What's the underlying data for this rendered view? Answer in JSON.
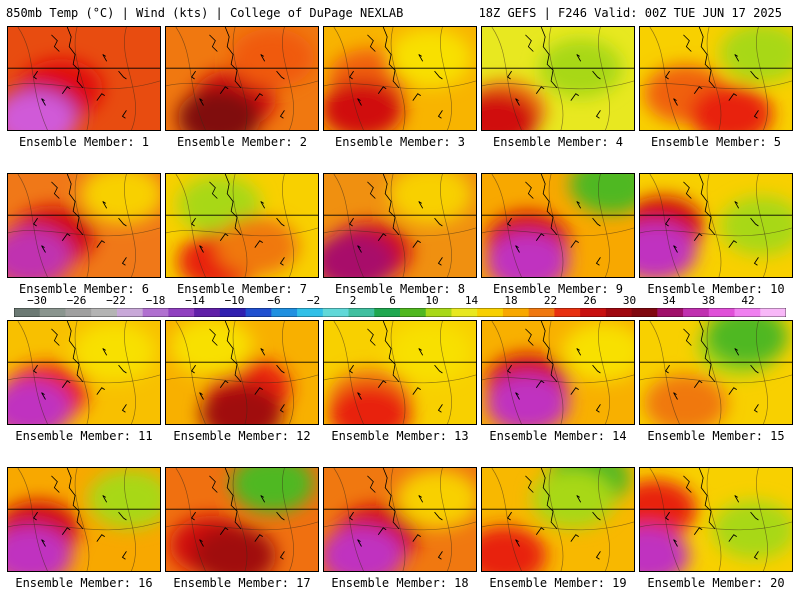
{
  "header": {
    "left": "850mb Temp (°C) | Wind (kts) | College of DuPage NEXLAB",
    "right": "18Z GEFS | F246 Valid: 00Z TUE JUN 17 2025"
  },
  "panels": [
    {
      "label": "Ensemble Member: 1",
      "base": "#e84c10",
      "blobs": [
        [
          "#e01010",
          0.35,
          0.6
        ],
        [
          "#a0106a",
          0.2,
          0.85
        ],
        [
          "#d05ad8",
          0.18,
          0.9
        ]
      ]
    },
    {
      "label": "Ensemble Member: 2",
      "base": "#f07810",
      "blobs": [
        [
          "#d01010",
          0.45,
          0.7
        ],
        [
          "#800810",
          0.35,
          0.88
        ],
        [
          "#f05a10",
          0.7,
          0.3
        ]
      ]
    },
    {
      "label": "Ensemble Member: 3",
      "base": "#f8b400",
      "blobs": [
        [
          "#f06010",
          0.3,
          0.5
        ],
        [
          "#d01010",
          0.25,
          0.8
        ],
        [
          "#f8e000",
          0.7,
          0.3
        ]
      ]
    },
    {
      "label": "Ensemble Member: 4",
      "base": "#e8e820",
      "blobs": [
        [
          "#f07810",
          0.15,
          0.8
        ],
        [
          "#d01010",
          0.1,
          0.9
        ],
        [
          "#a8d818",
          0.65,
          0.4
        ]
      ]
    },
    {
      "label": "Ensemble Member: 5",
      "base": "#f8d000",
      "blobs": [
        [
          "#f06010",
          0.3,
          0.65
        ],
        [
          "#a8d818",
          0.8,
          0.25
        ],
        [
          "#e82010",
          0.6,
          0.85
        ]
      ]
    },
    {
      "label": "Ensemble Member: 6",
      "base": "#f07818",
      "blobs": [
        [
          "#d01010",
          0.3,
          0.6
        ],
        [
          "#c030b0",
          0.15,
          0.8
        ],
        [
          "#f8d000",
          0.75,
          0.2
        ]
      ]
    },
    {
      "label": "Ensemble Member: 7",
      "base": "#f8d000",
      "blobs": [
        [
          "#a8d818",
          0.35,
          0.3
        ],
        [
          "#e82010",
          0.35,
          0.85
        ],
        [
          "#f07810",
          0.6,
          0.7
        ]
      ]
    },
    {
      "label": "Ensemble Member: 8",
      "base": "#f09010",
      "blobs": [
        [
          "#d01010",
          0.3,
          0.75
        ],
        [
          "#a8106a",
          0.2,
          0.85
        ],
        [
          "#f8d000",
          0.7,
          0.2
        ]
      ]
    },
    {
      "label": "Ensemble Member: 9",
      "base": "#f8a800",
      "blobs": [
        [
          "#d01010",
          0.3,
          0.65
        ],
        [
          "#c030c0",
          0.3,
          0.85
        ],
        [
          "#50b820",
          0.85,
          0.1
        ]
      ]
    },
    {
      "label": "Ensemble Member: 10",
      "base": "#f8d000",
      "blobs": [
        [
          "#d01010",
          0.15,
          0.5
        ],
        [
          "#c030c0",
          0.1,
          0.75
        ],
        [
          "#a8d818",
          0.8,
          0.5
        ]
      ]
    },
    {
      "label": "Ensemble Member: 11",
      "base": "#f8c000",
      "blobs": [
        [
          "#e82010",
          0.25,
          0.7
        ],
        [
          "#c030c0",
          0.15,
          0.85
        ],
        [
          "#f8e000",
          0.7,
          0.3
        ]
      ]
    },
    {
      "label": "Ensemble Member: 12",
      "base": "#f8b000",
      "blobs": [
        [
          "#e82010",
          0.55,
          0.65
        ],
        [
          "#f8e000",
          0.3,
          0.25
        ],
        [
          "#a01010",
          0.5,
          0.9
        ]
      ]
    },
    {
      "label": "Ensemble Member: 13",
      "base": "#f8d000",
      "blobs": [
        [
          "#f07810",
          0.3,
          0.75
        ],
        [
          "#e82010",
          0.3,
          0.9
        ],
        [
          "#f8e000",
          0.7,
          0.3
        ]
      ]
    },
    {
      "label": "Ensemble Member: 14",
      "base": "#f8b000",
      "blobs": [
        [
          "#d01010",
          0.3,
          0.6
        ],
        [
          "#c030c0",
          0.3,
          0.8
        ],
        [
          "#f8e000",
          0.8,
          0.3
        ]
      ]
    },
    {
      "label": "Ensemble Member: 15",
      "base": "#f8d000",
      "blobs": [
        [
          "#a8d818",
          0.65,
          0.25
        ],
        [
          "#50b820",
          0.7,
          0.15
        ],
        [
          "#f07810",
          0.3,
          0.8
        ]
      ]
    },
    {
      "label": "Ensemble Member: 16",
      "base": "#f8a800",
      "blobs": [
        [
          "#d01010",
          0.2,
          0.6
        ],
        [
          "#c030c0",
          0.15,
          0.85
        ],
        [
          "#a8d818",
          0.8,
          0.3
        ]
      ]
    },
    {
      "label": "Ensemble Member: 17",
      "base": "#f07010",
      "blobs": [
        [
          "#50b820",
          0.7,
          0.15
        ],
        [
          "#d01010",
          0.3,
          0.75
        ],
        [
          "#a01010",
          0.45,
          0.85
        ]
      ]
    },
    {
      "label": "Ensemble Member: 18",
      "base": "#f07810",
      "blobs": [
        [
          "#d01010",
          0.35,
          0.65
        ],
        [
          "#c030c0",
          0.25,
          0.85
        ],
        [
          "#f8d000",
          0.75,
          0.3
        ]
      ]
    },
    {
      "label": "Ensemble Member: 19",
      "base": "#f8b800",
      "blobs": [
        [
          "#50b820",
          0.7,
          0.1
        ],
        [
          "#a8d818",
          0.6,
          0.3
        ],
        [
          "#e82010",
          0.15,
          0.85
        ]
      ]
    },
    {
      "label": "Ensemble Member: 20",
      "base": "#f8d000",
      "blobs": [
        [
          "#e82010",
          0.1,
          0.4
        ],
        [
          "#c030c0",
          0.05,
          0.85
        ],
        [
          "#a8d818",
          0.75,
          0.6
        ]
      ]
    }
  ],
  "colorbar": {
    "ticks": [
      "−30",
      "−26",
      "−22",
      "−18",
      "−14",
      "−10",
      "−6",
      "−2",
      "2",
      "6",
      "10",
      "14",
      "18",
      "22",
      "26",
      "30",
      "34",
      "38",
      "42"
    ],
    "colors": [
      "#6c7a74",
      "#8a958f",
      "#a0a0a0",
      "#b4b4b4",
      "#c8a8d8",
      "#b070d0",
      "#9040c0",
      "#6020a8",
      "#3020b0",
      "#2050d0",
      "#2090e0",
      "#30c0e8",
      "#60d8d8",
      "#40c0a0",
      "#20a850",
      "#50b820",
      "#a8d818",
      "#e8e820",
      "#f8d000",
      "#f8a800",
      "#f07810",
      "#e83010",
      "#c81010",
      "#a00810",
      "#800810",
      "#a0106a",
      "#c030b0",
      "#e050d8",
      "#f080f0",
      "#f8b8f8"
    ]
  }
}
